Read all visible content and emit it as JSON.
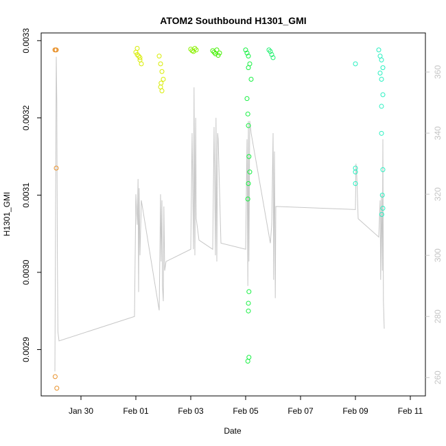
{
  "chart_data": {
    "type": "scatter",
    "title": "ATOM2 Southbound H1301_GMI",
    "xlabel": "Date",
    "ylabel": "H1301_GMI",
    "x_ticks": [
      "Jan 30",
      "Feb 01",
      "Feb 03",
      "Feb 05",
      "Feb 07",
      "Feb 09",
      "Feb 11"
    ],
    "y_ticks": [
      "0.0029",
      "0.0030",
      "0.0031",
      "0.0032",
      "0.0033"
    ],
    "y2_ticks": [
      "260",
      "280",
      "300",
      "320",
      "340",
      "360"
    ],
    "x_unit": "days after Jan 30",
    "x_range": [
      -1.2,
      12.5
    ],
    "ylim": [
      0.00284,
      0.00331
    ],
    "y2lim": [
      254.0,
      372.8
    ],
    "colors": {
      "line": "#c6c6c6",
      "orange": "#e8912a",
      "yellow": "#d8ec00",
      "yellowgreen": "#8af000",
      "green": "#42f000",
      "brightgreen": "#14f040",
      "seagreen": "#20f070",
      "cyan": "#28f0c0",
      "teal": "#35e6b8"
    },
    "point_series": [
      {
        "color": "orange",
        "x": [
          -0.95,
          -0.9,
          -0.92,
          -0.9,
          -0.94,
          -0.88
        ],
        "y": [
          0.003288,
          0.003288,
          0.003288,
          0.003135,
          0.002865,
          0.00285
        ]
      },
      {
        "color": "yellow",
        "x": [
          2.0,
          2.05,
          2.1,
          2.15,
          2.2,
          2.05,
          2.15
        ],
        "y": [
          0.003285,
          0.00329,
          0.00328,
          0.003275,
          0.00327,
          0.003282,
          0.003278
        ]
      },
      {
        "color": "yellow",
        "x": [
          2.85,
          2.9,
          2.95,
          3.0,
          2.9,
          2.95,
          2.92
        ],
        "y": [
          0.00328,
          0.00327,
          0.00326,
          0.00325,
          0.00324,
          0.003235,
          0.003245
        ]
      },
      {
        "color": "yellowgreen",
        "x": [
          4.0,
          4.05,
          4.1,
          4.15,
          4.2
        ],
        "y": [
          0.003289,
          0.003287,
          0.003286,
          0.00329,
          0.003288
        ]
      },
      {
        "color": "green",
        "x": [
          4.8,
          4.85,
          4.9,
          4.95,
          5.0,
          5.05
        ],
        "y": [
          0.003287,
          0.003285,
          0.003283,
          0.003288,
          0.003281,
          0.003284
        ]
      },
      {
        "color": "brightgreen",
        "x": [
          6.0,
          6.05,
          6.1,
          6.15,
          6.1,
          6.2
        ],
        "y": [
          0.003288,
          0.003284,
          0.00328,
          0.00327,
          0.003265,
          0.00325
        ]
      },
      {
        "color": "brightgreen",
        "x": [
          6.05,
          6.08,
          6.1,
          6.12,
          6.15,
          6.1,
          6.08,
          6.12
        ],
        "y": [
          0.003225,
          0.003205,
          0.00319,
          0.00315,
          0.00313,
          0.003115,
          0.003095,
          0.002975
        ]
      },
      {
        "color": "brightgreen",
        "x": [
          6.1,
          6.12,
          6.08,
          6.1
        ],
        "y": [
          0.00296,
          0.00289,
          0.002885,
          0.00295
        ]
      },
      {
        "color": "seagreen",
        "x": [
          6.85,
          6.9,
          6.95,
          7.0
        ],
        "y": [
          0.003288,
          0.003286,
          0.003282,
          0.003278
        ]
      },
      {
        "color": "cyan",
        "x": [
          10.0,
          10.0,
          10.0,
          10.0
        ],
        "y": [
          0.00327,
          0.003135,
          0.00313,
          0.003115
        ]
      },
      {
        "color": "cyan",
        "x": [
          10.85,
          10.9,
          10.95,
          11.0,
          10.9,
          10.95,
          11.0,
          10.95
        ],
        "y": [
          0.003288,
          0.00328,
          0.003275,
          0.003265,
          0.003258,
          0.00325,
          0.00323,
          0.003215
        ]
      },
      {
        "color": "cyan",
        "x": [
          10.95,
          11.0,
          10.98,
          11.0,
          10.96
        ],
        "y": [
          0.00318,
          0.003133,
          0.0031,
          0.003083,
          0.003075
        ]
      }
    ],
    "line_series": {
      "color": "line",
      "x": [
        -0.95,
        -0.9,
        -0.88,
        -0.86,
        -0.84,
        -0.8,
        1.95,
        2.0,
        2.05,
        2.08,
        2.1,
        2.12,
        2.15,
        2.2,
        2.85,
        2.9,
        2.92,
        2.95,
        2.97,
        3.0,
        3.02,
        3.05,
        3.1,
        4.0,
        4.05,
        4.1,
        4.12,
        4.15,
        4.18,
        4.2,
        4.3,
        4.8,
        4.85,
        4.9,
        4.92,
        4.95,
        4.98,
        5.0,
        5.1,
        6.0,
        6.05,
        6.08,
        6.1,
        6.12,
        6.15,
        6.2,
        6.9,
        6.95,
        7.0,
        7.02,
        7.05,
        7.08,
        7.1,
        10.0,
        10.02,
        10.05,
        10.1,
        10.85,
        10.9,
        10.92,
        10.95,
        10.98,
        11.0,
        11.02,
        11.05
      ],
      "y": [
        262.0,
        365.0,
        350.0,
        300.0,
        275.0,
        272.0,
        280.0,
        320.0,
        310.0,
        325.0,
        288.0,
        322.0,
        300.0,
        318.0,
        282.0,
        320.0,
        298.0,
        318.0,
        290.0,
        285.0,
        316.0,
        295.0,
        298.0,
        302.0,
        340.0,
        302.0,
        355.0,
        300.0,
        345.0,
        312.0,
        305.0,
        302.0,
        342.0,
        300.0,
        345.0,
        298.0,
        340.0,
        338.0,
        304.0,
        302.0,
        338.0,
        290.0,
        344.0,
        298.0,
        344.0,
        340.0,
        304.0,
        310.0,
        340.0,
        292.0,
        334.0,
        286.0,
        316.0,
        315.0,
        330.0,
        326.0,
        312.0,
        306.0,
        318.0,
        292.0,
        320.0,
        295.0,
        338.0,
        285.0,
        276.0
      ]
    }
  }
}
